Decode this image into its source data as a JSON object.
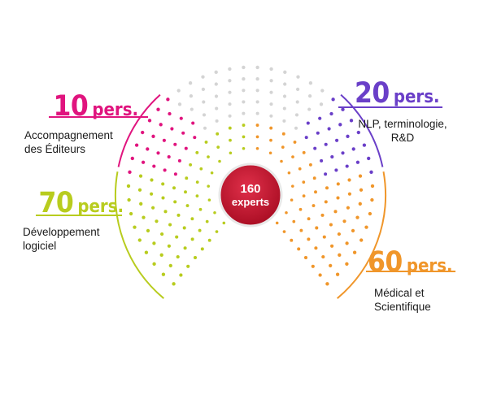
{
  "center": {
    "line1": "160",
    "line2": "experts"
  },
  "groups": [
    {
      "id": "editeurs",
      "count": "10",
      "unit": "pers.",
      "description_lines": [
        "Accompagnement",
        "des Éditeurs"
      ],
      "color": "#e0147e"
    },
    {
      "id": "dev",
      "count": "70",
      "unit": "pers.",
      "description_lines": [
        "Développement",
        "logiciel"
      ],
      "color": "#b8cc1e"
    },
    {
      "id": "nlp",
      "count": "20",
      "unit": "pers.",
      "description_lines": [
        "NLP, terminologie,",
        "R&D"
      ],
      "color": "#6a3fc8"
    },
    {
      "id": "medical",
      "count": "60",
      "unit": "pers.",
      "description_lines": [
        "Médical et",
        "Scientifique"
      ],
      "color": "#f0962a"
    }
  ],
  "colors": {
    "unassigned": "#d4d4d4",
    "center_badge": "#c4102a",
    "center_text": "#ffffff"
  }
}
